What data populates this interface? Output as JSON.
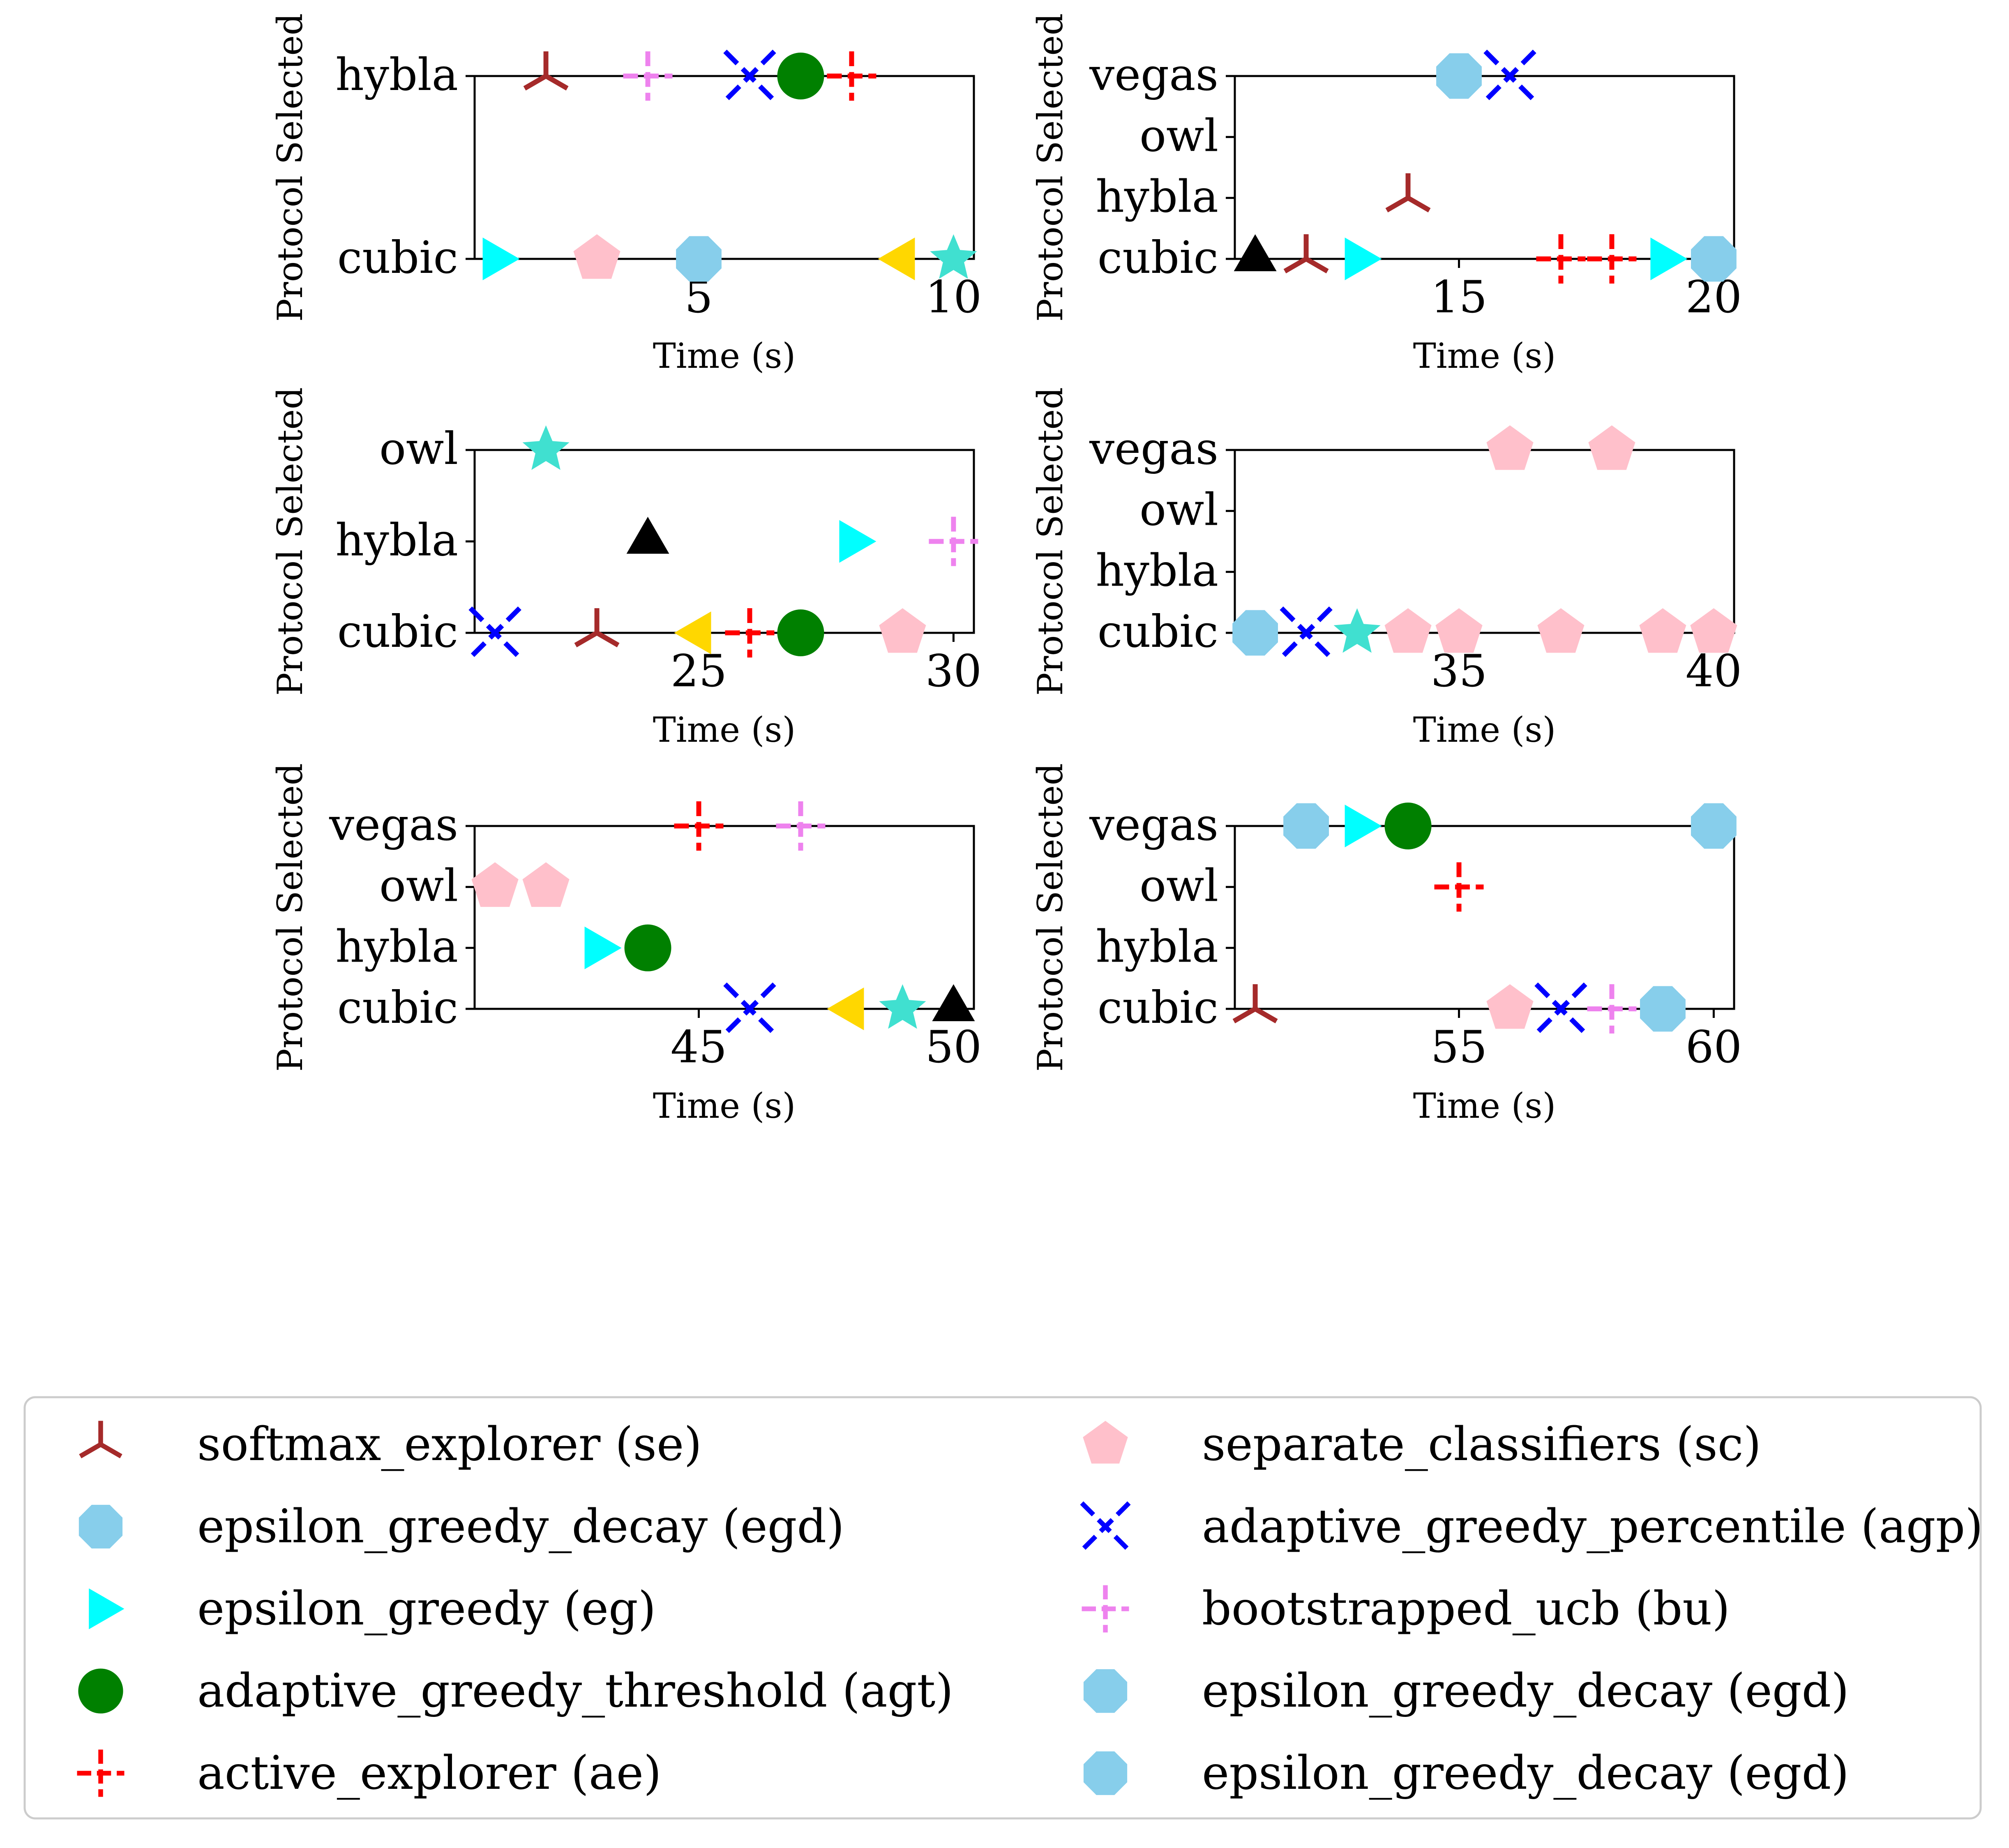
{
  "colors": {
    "se": "#a52a2a",
    "egd": "#87ceeb",
    "eg": "#00ffff",
    "agt": "#008000",
    "ae": "#ff0000",
    "sc": "#ffc0cb",
    "agp": "#0000ff",
    "bu": "#ee82ee",
    "gold": "#ffd700",
    "turq": "#40e0d0",
    "black": "#000000"
  },
  "chart_data": [
    {
      "type": "scatter",
      "xlabel": "Time (s)",
      "ylabel": "Protocol Selected",
      "xlim": [
        0.6,
        10.4
      ],
      "categories": [
        "cubic",
        "hybla"
      ],
      "xticks": [
        5,
        10
      ],
      "points": [
        {
          "x": 1,
          "y": "cubic",
          "marker": "tri-right",
          "color": "eg"
        },
        {
          "x": 2,
          "y": "hybla",
          "marker": "tri-down",
          "color": "se"
        },
        {
          "x": 3,
          "y": "cubic",
          "marker": "pentagon",
          "color": "sc"
        },
        {
          "x": 4,
          "y": "hybla",
          "marker": "plus-dash",
          "color": "bu"
        },
        {
          "x": 5,
          "y": "cubic",
          "marker": "octagon",
          "color": "egd"
        },
        {
          "x": 6,
          "y": "hybla",
          "marker": "x-dash",
          "color": "agp"
        },
        {
          "x": 7,
          "y": "hybla",
          "marker": "circle",
          "color": "agt"
        },
        {
          "x": 8,
          "y": "hybla",
          "marker": "plus-dash",
          "color": "ae"
        },
        {
          "x": 9,
          "y": "cubic",
          "marker": "tri-left",
          "color": "gold"
        },
        {
          "x": 10,
          "y": "cubic",
          "marker": "star",
          "color": "turq"
        }
      ]
    },
    {
      "type": "scatter",
      "xlabel": "Time (s)",
      "ylabel": "Protocol Selected",
      "xlim": [
        10.6,
        20.4
      ],
      "categories": [
        "cubic",
        "hybla",
        "owl",
        "vegas"
      ],
      "xticks": [
        15,
        20
      ],
      "points": [
        {
          "x": 11,
          "y": "cubic",
          "marker": "tri-up",
          "color": "black"
        },
        {
          "x": 12,
          "y": "cubic",
          "marker": "tri-down",
          "color": "se"
        },
        {
          "x": 13,
          "y": "cubic",
          "marker": "tri-right",
          "color": "eg"
        },
        {
          "x": 14,
          "y": "hybla",
          "marker": "tri-down",
          "color": "se"
        },
        {
          "x": 15,
          "y": "vegas",
          "marker": "octagon",
          "color": "egd"
        },
        {
          "x": 16,
          "y": "vegas",
          "marker": "x-dash",
          "color": "agp"
        },
        {
          "x": 17,
          "y": "cubic",
          "marker": "plus-dash",
          "color": "ae"
        },
        {
          "x": 18,
          "y": "cubic",
          "marker": "plus-dash",
          "color": "ae"
        },
        {
          "x": 19,
          "y": "cubic",
          "marker": "tri-right",
          "color": "eg"
        },
        {
          "x": 20,
          "y": "cubic",
          "marker": "octagon",
          "color": "egd"
        }
      ]
    },
    {
      "type": "scatter",
      "xlabel": "Time (s)",
      "ylabel": "Protocol Selected",
      "xlim": [
        20.6,
        30.4
      ],
      "categories": [
        "cubic",
        "hybla",
        "owl"
      ],
      "xticks": [
        25,
        30
      ],
      "points": [
        {
          "x": 21,
          "y": "cubic",
          "marker": "x-dash",
          "color": "agp"
        },
        {
          "x": 22,
          "y": "owl",
          "marker": "star",
          "color": "turq"
        },
        {
          "x": 23,
          "y": "cubic",
          "marker": "tri-down",
          "color": "se"
        },
        {
          "x": 24,
          "y": "hybla",
          "marker": "tri-up",
          "color": "black"
        },
        {
          "x": 25,
          "y": "cubic",
          "marker": "tri-left",
          "color": "gold"
        },
        {
          "x": 26,
          "y": "cubic",
          "marker": "plus-dash",
          "color": "ae"
        },
        {
          "x": 27,
          "y": "cubic",
          "marker": "circle",
          "color": "agt"
        },
        {
          "x": 28,
          "y": "hybla",
          "marker": "tri-right",
          "color": "eg"
        },
        {
          "x": 29,
          "y": "cubic",
          "marker": "pentagon",
          "color": "sc"
        },
        {
          "x": 30,
          "y": "hybla",
          "marker": "plus-dash",
          "color": "bu"
        }
      ]
    },
    {
      "type": "scatter",
      "xlabel": "Time (s)",
      "ylabel": "Protocol Selected",
      "xlim": [
        30.6,
        40.4
      ],
      "categories": [
        "cubic",
        "hybla",
        "owl",
        "vegas"
      ],
      "xticks": [
        35,
        40
      ],
      "points": [
        {
          "x": 31,
          "y": "cubic",
          "marker": "octagon",
          "color": "egd"
        },
        {
          "x": 32,
          "y": "cubic",
          "marker": "x-dash",
          "color": "agp"
        },
        {
          "x": 33,
          "y": "cubic",
          "marker": "star",
          "color": "turq"
        },
        {
          "x": 34,
          "y": "cubic",
          "marker": "pentagon",
          "color": "sc"
        },
        {
          "x": 35,
          "y": "cubic",
          "marker": "pentagon",
          "color": "sc"
        },
        {
          "x": 36,
          "y": "vegas",
          "marker": "pentagon",
          "color": "sc"
        },
        {
          "x": 37,
          "y": "cubic",
          "marker": "pentagon",
          "color": "sc"
        },
        {
          "x": 38,
          "y": "vegas",
          "marker": "pentagon",
          "color": "sc"
        },
        {
          "x": 39,
          "y": "cubic",
          "marker": "pentagon",
          "color": "sc"
        },
        {
          "x": 40,
          "y": "cubic",
          "marker": "pentagon",
          "color": "sc"
        }
      ]
    },
    {
      "type": "scatter",
      "xlabel": "Time (s)",
      "ylabel": "Protocol Selected",
      "xlim": [
        40.6,
        50.4
      ],
      "categories": [
        "cubic",
        "hybla",
        "owl",
        "vegas"
      ],
      "xticks": [
        45,
        50
      ],
      "points": [
        {
          "x": 41,
          "y": "owl",
          "marker": "pentagon",
          "color": "sc"
        },
        {
          "x": 42,
          "y": "owl",
          "marker": "pentagon",
          "color": "sc"
        },
        {
          "x": 43,
          "y": "hybla",
          "marker": "tri-right",
          "color": "eg"
        },
        {
          "x": 44,
          "y": "hybla",
          "marker": "circle",
          "color": "agt"
        },
        {
          "x": 45,
          "y": "vegas",
          "marker": "plus-dash",
          "color": "ae"
        },
        {
          "x": 46,
          "y": "cubic",
          "marker": "x-dash",
          "color": "agp"
        },
        {
          "x": 47,
          "y": "vegas",
          "marker": "plus-dash",
          "color": "bu"
        },
        {
          "x": 48,
          "y": "cubic",
          "marker": "tri-left",
          "color": "gold"
        },
        {
          "x": 49,
          "y": "cubic",
          "marker": "star",
          "color": "turq"
        },
        {
          "x": 50,
          "y": "cubic",
          "marker": "tri-up",
          "color": "black"
        }
      ]
    },
    {
      "type": "scatter",
      "xlabel": "Time (s)",
      "ylabel": "Protocol Selected",
      "xlim": [
        50.6,
        60.4
      ],
      "categories": [
        "cubic",
        "hybla",
        "owl",
        "vegas"
      ],
      "xticks": [
        55,
        60
      ],
      "points": [
        {
          "x": 51,
          "y": "cubic",
          "marker": "tri-down",
          "color": "se"
        },
        {
          "x": 52,
          "y": "vegas",
          "marker": "octagon",
          "color": "egd"
        },
        {
          "x": 53,
          "y": "vegas",
          "marker": "tri-right",
          "color": "eg"
        },
        {
          "x": 54,
          "y": "vegas",
          "marker": "circle",
          "color": "agt"
        },
        {
          "x": 55,
          "y": "owl",
          "marker": "plus-dash",
          "color": "ae"
        },
        {
          "x": 56,
          "y": "cubic",
          "marker": "pentagon",
          "color": "sc"
        },
        {
          "x": 57,
          "y": "cubic",
          "marker": "x-dash",
          "color": "agp"
        },
        {
          "x": 58,
          "y": "cubic",
          "marker": "plus-dash",
          "color": "bu"
        },
        {
          "x": 59,
          "y": "cubic",
          "marker": "octagon",
          "color": "egd"
        },
        {
          "x": 60,
          "y": "vegas",
          "marker": "octagon",
          "color": "egd"
        }
      ]
    }
  ],
  "legend": {
    "placement": "bottom",
    "entries": [
      {
        "label": "softmax_explorer (se)",
        "marker": "tri-down",
        "color": "se"
      },
      {
        "label": "epsilon_greedy_decay (egd)",
        "marker": "octagon",
        "color": "egd"
      },
      {
        "label": "epsilon_greedy (eg)",
        "marker": "tri-right",
        "color": "eg"
      },
      {
        "label": "adaptive_greedy_threshold (agt)",
        "marker": "circle",
        "color": "agt"
      },
      {
        "label": "active_explorer (ae)",
        "marker": "plus-dash",
        "color": "ae"
      },
      {
        "label": "separate_classifiers (sc)",
        "marker": "pentagon",
        "color": "sc"
      },
      {
        "label": "adaptive_greedy_percentile (agp)",
        "marker": "x-dash",
        "color": "agp"
      },
      {
        "label": "bootstrapped_ucb (bu)",
        "marker": "plus-dash",
        "color": "bu"
      },
      {
        "label": "epsilon_greedy_decay (egd)",
        "marker": "octagon",
        "color": "egd"
      },
      {
        "label": "epsilon_greedy_decay (egd)",
        "marker": "octagon",
        "color": "egd"
      }
    ]
  }
}
